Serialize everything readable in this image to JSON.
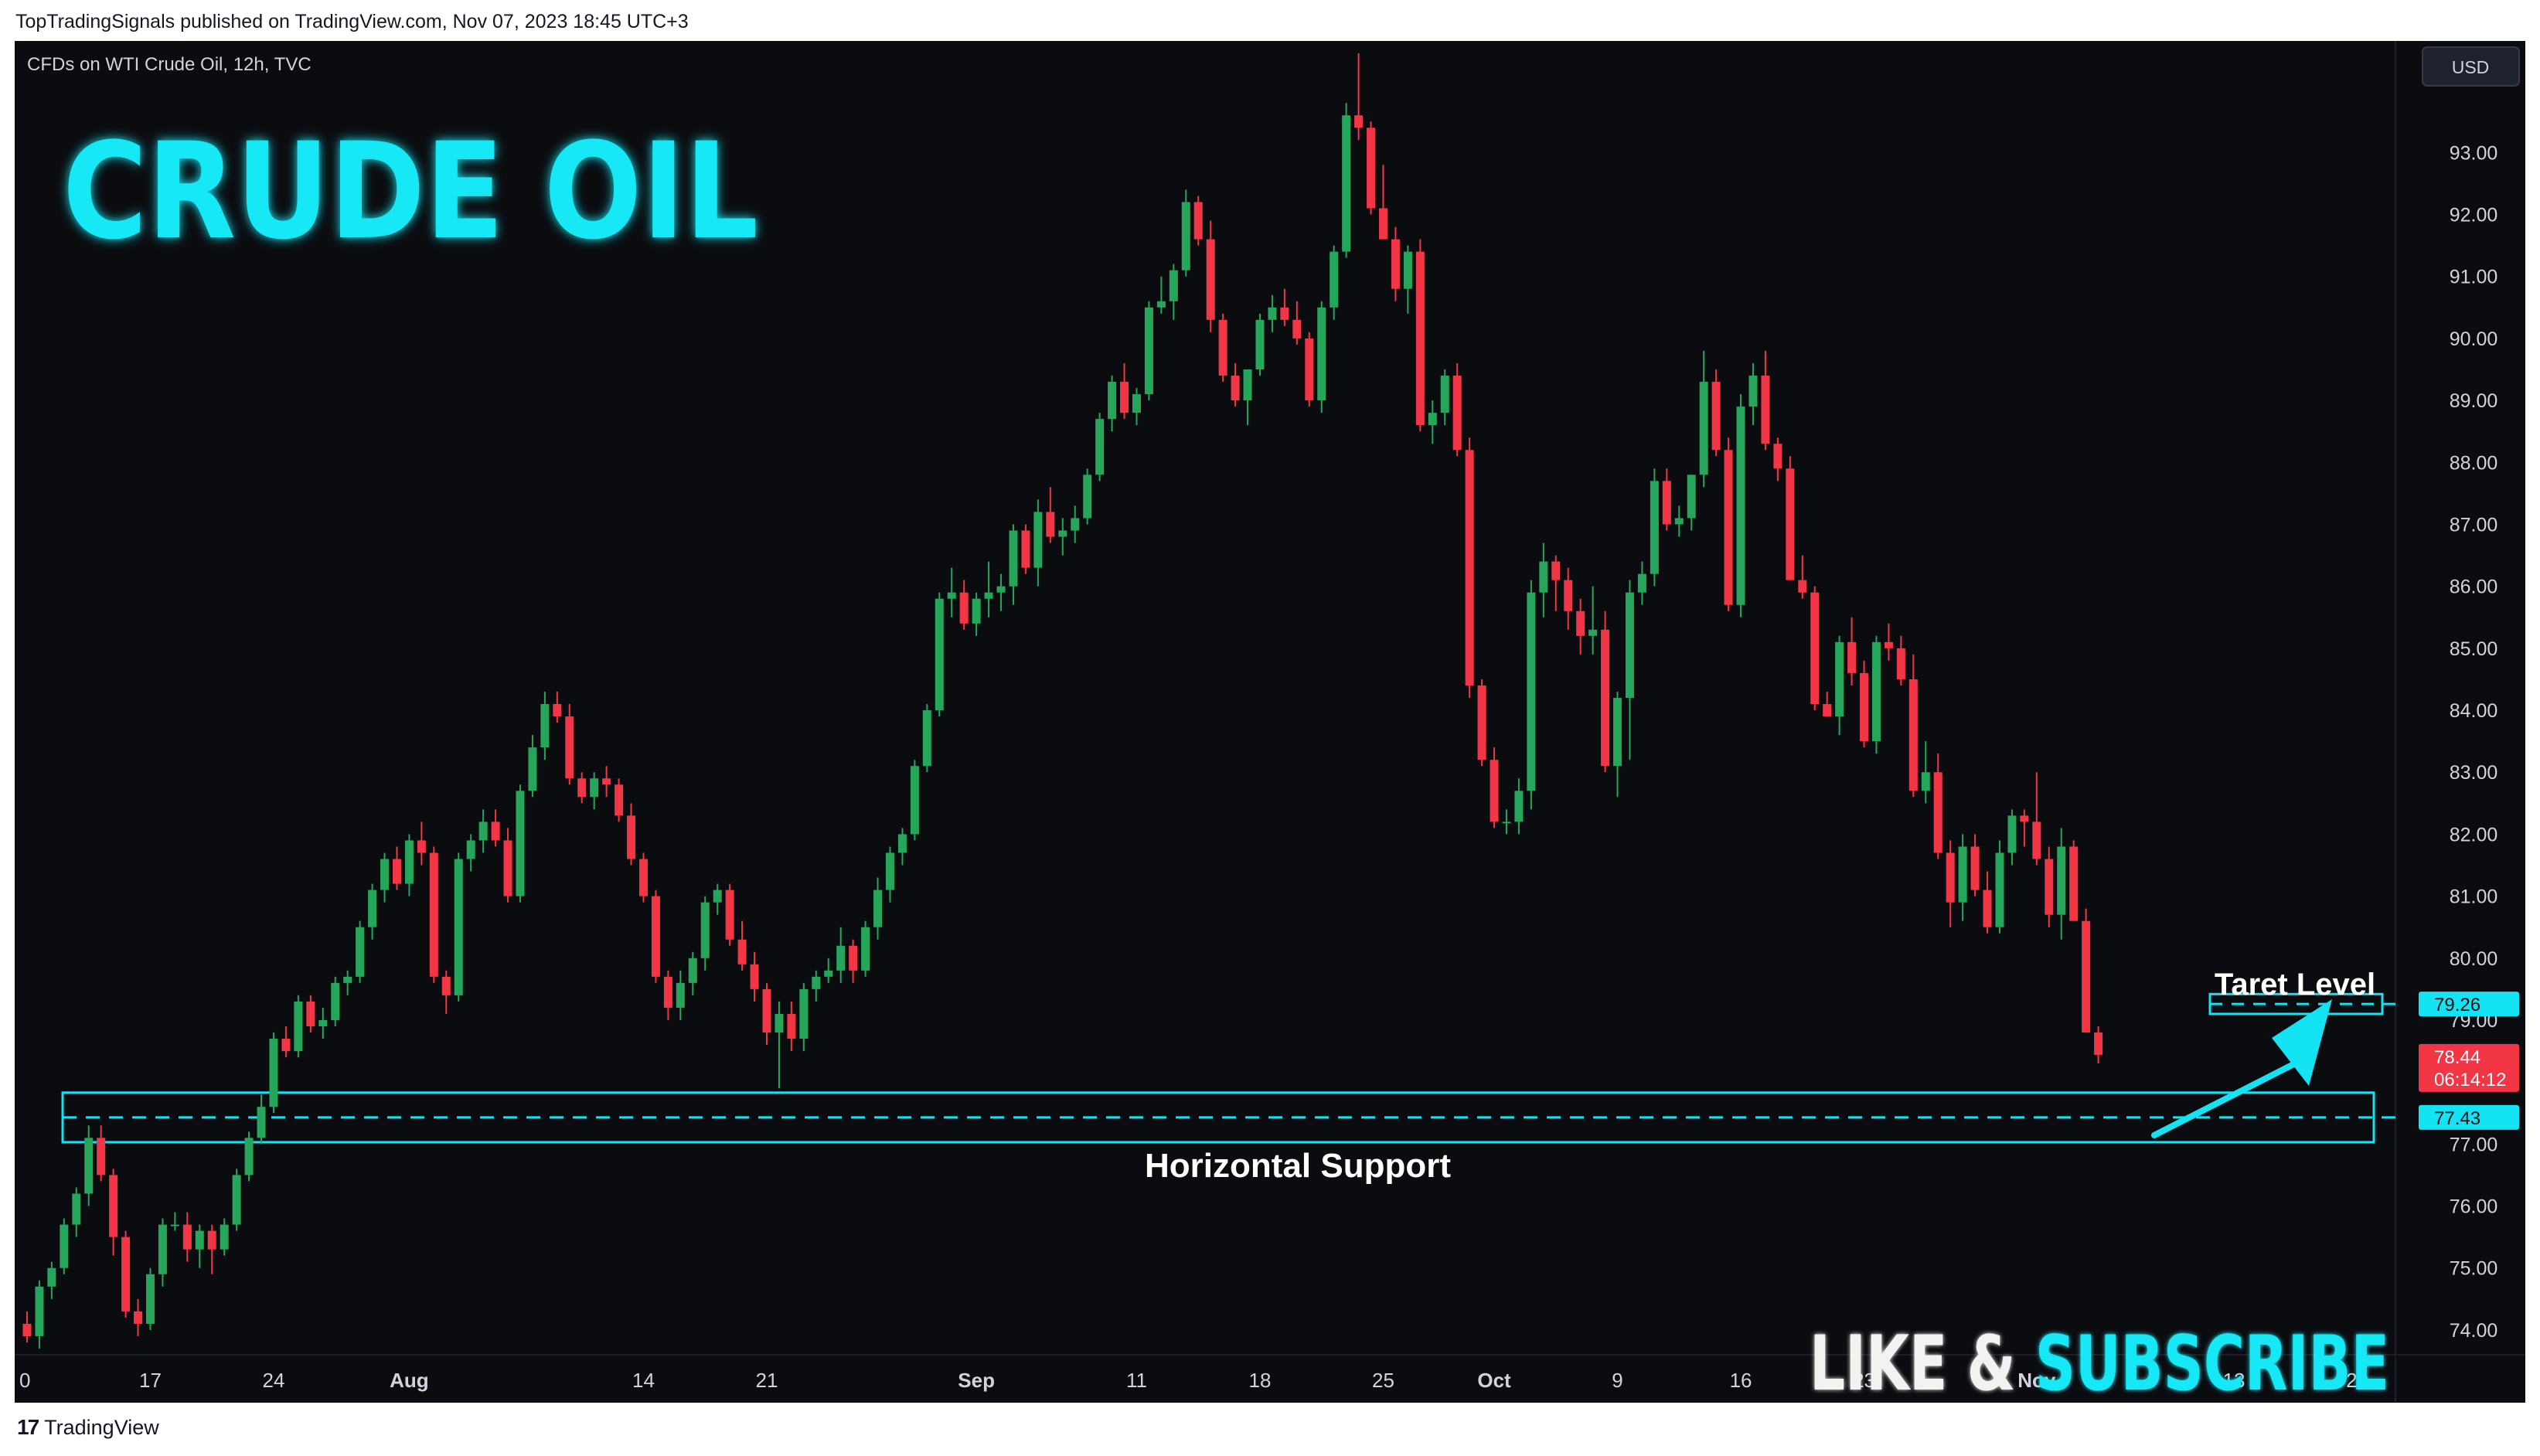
{
  "header": {
    "published_text": "TopTradingSignals published on TradingView.com, Nov 07, 2023 18:45 UTC+3"
  },
  "chart_header": {
    "symbol_text": "CFDs on WTI Crude Oil, 12h, TVC",
    "currency_button": "USD"
  },
  "overlay": {
    "title": "CRUDE OIL",
    "cta_like": "LIKE & ",
    "cta_subscribe": "SUBSCRIBE",
    "target_label": "Taret Level",
    "support_label": "Horizontal Support"
  },
  "footer": {
    "brand": "TradingView",
    "logo_glyph": "17"
  },
  "colors": {
    "background": "#0b0c10",
    "bull": "#26a65b",
    "bear": "#f23645",
    "accent": "#13e3f2",
    "axis_text": "#d1d4dc"
  },
  "chart_data": {
    "type": "candlestick",
    "interval": "12h",
    "y_axis": {
      "range": [
        73.6,
        94.8
      ],
      "ticks": [
        74.0,
        75.0,
        76.0,
        77.0,
        78.0,
        79.0,
        80.0,
        81.0,
        82.0,
        83.0,
        84.0,
        85.0,
        86.0,
        87.0,
        88.0,
        89.0,
        90.0,
        91.0,
        92.0,
        93.0
      ],
      "tick_labels": [
        "74.00",
        "75.00",
        "76.00",
        "77.00",
        "",
        "79.00",
        "80.00",
        "81.00",
        "82.00",
        "83.00",
        "84.00",
        "85.00",
        "86.00",
        "87.00",
        "88.00",
        "89.00",
        "90.00",
        "91.00",
        "92.00",
        "93.00"
      ]
    },
    "x_axis": {
      "labels": [
        "0",
        "17",
        "24",
        "Aug",
        "14",
        "21",
        "Sep",
        "11",
        "18",
        "25",
        "Oct",
        "9",
        "16",
        "23",
        "Nov",
        "13",
        "20"
      ],
      "label_candle_index": [
        0,
        10,
        20,
        31,
        50,
        60,
        77,
        90,
        100,
        110,
        119,
        129,
        139,
        149,
        163,
        179,
        189
      ],
      "bold_labels": [
        "Aug",
        "Sep",
        "Oct",
        "Nov"
      ]
    },
    "price_labels": [
      {
        "value": 79.26,
        "text": "79.26",
        "kind": "target"
      },
      {
        "value": 77.43,
        "text": "77.43",
        "kind": "support"
      },
      {
        "value": 78.44,
        "text": "78.44",
        "countdown": "06:14:12",
        "kind": "last"
      }
    ],
    "levels": {
      "support": {
        "value": 77.43,
        "zone": [
          77.03,
          77.83
        ]
      },
      "target": {
        "value": 79.26,
        "zone": [
          79.1,
          79.42
        ]
      }
    },
    "candles": [
      [
        74.1,
        74.3,
        73.8,
        73.9
      ],
      [
        73.9,
        74.8,
        73.7,
        74.7
      ],
      [
        74.7,
        75.1,
        74.5,
        75.0
      ],
      [
        75.0,
        75.8,
        74.9,
        75.7
      ],
      [
        75.7,
        76.3,
        75.5,
        76.2
      ],
      [
        76.2,
        77.3,
        76.0,
        77.1
      ],
      [
        77.1,
        77.3,
        76.4,
        76.5
      ],
      [
        76.5,
        76.6,
        75.2,
        75.5
      ],
      [
        75.5,
        75.6,
        74.2,
        74.3
      ],
      [
        74.3,
        74.5,
        73.9,
        74.1
      ],
      [
        74.1,
        75.0,
        74.0,
        74.9
      ],
      [
        74.9,
        75.8,
        74.7,
        75.7
      ],
      [
        75.7,
        75.9,
        75.6,
        75.7
      ],
      [
        75.7,
        75.9,
        75.1,
        75.3
      ],
      [
        75.3,
        75.7,
        75.0,
        75.6
      ],
      [
        75.6,
        75.7,
        74.9,
        75.3
      ],
      [
        75.3,
        75.8,
        75.2,
        75.7
      ],
      [
        75.7,
        76.6,
        75.6,
        76.5
      ],
      [
        76.5,
        77.2,
        76.4,
        77.1
      ],
      [
        77.1,
        77.8,
        77.0,
        77.6
      ],
      [
        77.6,
        78.8,
        77.5,
        78.7
      ],
      [
        78.7,
        78.9,
        78.4,
        78.5
      ],
      [
        78.5,
        79.4,
        78.4,
        79.3
      ],
      [
        79.3,
        79.4,
        78.8,
        78.9
      ],
      [
        78.9,
        79.2,
        78.7,
        79.0
      ],
      [
        79.0,
        79.7,
        78.9,
        79.6
      ],
      [
        79.6,
        79.8,
        79.4,
        79.7
      ],
      [
        79.7,
        80.6,
        79.6,
        80.5
      ],
      [
        80.5,
        81.2,
        80.3,
        81.1
      ],
      [
        81.1,
        81.7,
        80.9,
        81.6
      ],
      [
        81.6,
        81.8,
        81.1,
        81.2
      ],
      [
        81.2,
        82.0,
        81.0,
        81.9
      ],
      [
        81.9,
        82.2,
        81.5,
        81.7
      ],
      [
        81.7,
        81.8,
        79.6,
        79.7
      ],
      [
        79.7,
        79.8,
        79.1,
        79.4
      ],
      [
        79.4,
        81.7,
        79.3,
        81.6
      ],
      [
        81.6,
        82.0,
        81.4,
        81.9
      ],
      [
        81.9,
        82.4,
        81.7,
        82.2
      ],
      [
        82.2,
        82.4,
        81.8,
        81.9
      ],
      [
        81.9,
        82.1,
        80.9,
        81.0
      ],
      [
        81.0,
        82.8,
        80.9,
        82.7
      ],
      [
        82.7,
        83.6,
        82.6,
        83.4
      ],
      [
        83.4,
        84.3,
        83.2,
        84.1
      ],
      [
        84.1,
        84.3,
        83.8,
        83.9
      ],
      [
        83.9,
        84.1,
        82.8,
        82.9
      ],
      [
        82.9,
        83.0,
        82.5,
        82.6
      ],
      [
        82.6,
        83.0,
        82.4,
        82.9
      ],
      [
        82.9,
        83.1,
        82.6,
        82.8
      ],
      [
        82.8,
        82.9,
        82.2,
        82.3
      ],
      [
        82.3,
        82.5,
        81.5,
        81.6
      ],
      [
        81.6,
        81.7,
        80.9,
        81.0
      ],
      [
        81.0,
        81.1,
        79.6,
        79.7
      ],
      [
        79.7,
        79.8,
        79.0,
        79.2
      ],
      [
        79.2,
        79.8,
        79.0,
        79.6
      ],
      [
        79.6,
        80.1,
        79.4,
        80.0
      ],
      [
        80.0,
        81.0,
        79.8,
        80.9
      ],
      [
        80.9,
        81.2,
        80.7,
        81.1
      ],
      [
        81.1,
        81.2,
        80.2,
        80.3
      ],
      [
        80.3,
        80.6,
        79.8,
        79.9
      ],
      [
        79.9,
        80.1,
        79.3,
        79.5
      ],
      [
        79.5,
        79.6,
        78.6,
        78.8
      ],
      [
        78.8,
        79.3,
        77.9,
        79.1
      ],
      [
        79.1,
        79.3,
        78.5,
        78.7
      ],
      [
        78.7,
        79.6,
        78.5,
        79.5
      ],
      [
        79.5,
        79.8,
        79.3,
        79.7
      ],
      [
        79.7,
        80.0,
        79.6,
        79.8
      ],
      [
        79.8,
        80.5,
        79.6,
        80.2
      ],
      [
        80.2,
        80.3,
        79.6,
        79.8
      ],
      [
        79.8,
        80.6,
        79.7,
        80.5
      ],
      [
        80.5,
        81.3,
        80.3,
        81.1
      ],
      [
        81.1,
        81.8,
        80.9,
        81.7
      ],
      [
        81.7,
        82.1,
        81.5,
        82.0
      ],
      [
        82.0,
        83.2,
        81.9,
        83.1
      ],
      [
        83.1,
        84.1,
        83.0,
        84.0
      ],
      [
        84.0,
        85.9,
        83.9,
        85.8
      ],
      [
        85.8,
        86.3,
        85.5,
        85.9
      ],
      [
        85.9,
        86.1,
        85.3,
        85.4
      ],
      [
        85.4,
        85.9,
        85.2,
        85.8
      ],
      [
        85.8,
        86.4,
        85.5,
        85.9
      ],
      [
        85.9,
        86.2,
        85.6,
        86.0
      ],
      [
        86.0,
        87.0,
        85.7,
        86.9
      ],
      [
        86.9,
        87.0,
        86.2,
        86.3
      ],
      [
        86.3,
        87.4,
        86.0,
        87.2
      ],
      [
        87.2,
        87.6,
        86.7,
        86.8
      ],
      [
        86.8,
        87.1,
        86.5,
        86.9
      ],
      [
        86.9,
        87.3,
        86.7,
        87.1
      ],
      [
        87.1,
        87.9,
        87.0,
        87.8
      ],
      [
        87.8,
        88.8,
        87.7,
        88.7
      ],
      [
        88.7,
        89.4,
        88.5,
        89.3
      ],
      [
        89.3,
        89.6,
        88.7,
        88.8
      ],
      [
        88.8,
        89.2,
        88.6,
        89.1
      ],
      [
        89.1,
        90.6,
        89.0,
        90.5
      ],
      [
        90.5,
        91.0,
        90.4,
        90.6
      ],
      [
        90.6,
        91.2,
        90.3,
        91.1
      ],
      [
        91.1,
        92.4,
        91.0,
        92.2
      ],
      [
        92.2,
        92.3,
        91.5,
        91.6
      ],
      [
        91.6,
        91.9,
        90.1,
        90.3
      ],
      [
        90.3,
        90.4,
        89.3,
        89.4
      ],
      [
        89.4,
        89.6,
        88.9,
        89.0
      ],
      [
        89.0,
        89.5,
        88.6,
        89.5
      ],
      [
        89.5,
        90.4,
        89.4,
        90.3
      ],
      [
        90.3,
        90.7,
        90.1,
        90.5
      ],
      [
        90.5,
        90.8,
        90.2,
        90.3
      ],
      [
        90.3,
        90.6,
        89.9,
        90.0
      ],
      [
        90.0,
        90.1,
        88.9,
        89.0
      ],
      [
        89.0,
        90.6,
        88.8,
        90.5
      ],
      [
        90.5,
        91.5,
        90.3,
        91.4
      ],
      [
        91.4,
        93.8,
        91.3,
        93.6
      ],
      [
        93.6,
        94.6,
        93.2,
        93.4
      ],
      [
        93.4,
        93.5,
        92.0,
        92.1
      ],
      [
        92.1,
        92.8,
        91.8,
        91.6
      ],
      [
        91.6,
        91.8,
        90.6,
        90.8
      ],
      [
        90.8,
        91.5,
        90.4,
        91.4
      ],
      [
        91.4,
        91.6,
        88.5,
        88.6
      ],
      [
        88.6,
        89.0,
        88.3,
        88.8
      ],
      [
        88.8,
        89.5,
        88.6,
        89.4
      ],
      [
        89.4,
        89.6,
        88.1,
        88.2
      ],
      [
        88.2,
        88.4,
        84.2,
        84.4
      ],
      [
        84.4,
        84.5,
        83.1,
        83.2
      ],
      [
        83.2,
        83.4,
        82.1,
        82.2
      ],
      [
        82.2,
        82.4,
        82.0,
        82.2
      ],
      [
        82.2,
        82.9,
        82.0,
        82.7
      ],
      [
        82.7,
        86.1,
        82.4,
        85.9
      ],
      [
        85.9,
        86.7,
        85.5,
        86.4
      ],
      [
        86.4,
        86.5,
        85.6,
        86.1
      ],
      [
        86.1,
        86.3,
        85.3,
        85.6
      ],
      [
        85.6,
        85.8,
        84.9,
        85.2
      ],
      [
        85.2,
        86.0,
        84.9,
        85.3
      ],
      [
        85.3,
        85.6,
        83.0,
        83.1
      ],
      [
        83.1,
        84.3,
        82.6,
        84.2
      ],
      [
        84.2,
        86.1,
        83.2,
        85.9
      ],
      [
        85.9,
        86.4,
        85.7,
        86.2
      ],
      [
        86.2,
        87.9,
        86.0,
        87.7
      ],
      [
        87.7,
        87.9,
        86.9,
        87.0
      ],
      [
        87.0,
        87.3,
        86.8,
        87.1
      ],
      [
        87.1,
        87.8,
        86.9,
        87.8
      ],
      [
        87.8,
        89.8,
        87.6,
        89.3
      ],
      [
        89.3,
        89.5,
        88.1,
        88.2
      ],
      [
        88.2,
        88.4,
        85.6,
        85.7
      ],
      [
        85.7,
        89.1,
        85.5,
        88.9
      ],
      [
        88.9,
        89.6,
        88.6,
        89.4
      ],
      [
        89.4,
        89.8,
        88.2,
        88.3
      ],
      [
        88.3,
        88.4,
        87.7,
        87.9
      ],
      [
        87.9,
        88.1,
        86.1,
        86.1
      ],
      [
        86.1,
        86.5,
        85.8,
        85.9
      ],
      [
        85.9,
        86.0,
        84.0,
        84.1
      ],
      [
        84.1,
        84.3,
        83.9,
        83.9
      ],
      [
        83.9,
        85.2,
        83.6,
        85.1
      ],
      [
        85.1,
        85.5,
        84.4,
        84.6
      ],
      [
        84.6,
        84.8,
        83.4,
        83.5
      ],
      [
        83.5,
        85.2,
        83.3,
        85.1
      ],
      [
        85.1,
        85.4,
        84.8,
        85.0
      ],
      [
        85.0,
        85.2,
        84.4,
        84.5
      ],
      [
        84.5,
        84.9,
        82.6,
        82.7
      ],
      [
        82.7,
        83.5,
        82.5,
        83.0
      ],
      [
        83.0,
        83.3,
        81.6,
        81.7
      ],
      [
        81.7,
        81.9,
        80.5,
        80.9
      ],
      [
        80.9,
        82.0,
        80.6,
        81.8
      ],
      [
        81.8,
        82.0,
        81.0,
        81.1
      ],
      [
        81.1,
        81.4,
        80.4,
        80.5
      ],
      [
        80.5,
        81.9,
        80.4,
        81.7
      ],
      [
        81.7,
        82.4,
        81.5,
        82.3
      ],
      [
        82.3,
        82.4,
        81.8,
        82.2
      ],
      [
        82.2,
        83.0,
        81.5,
        81.6
      ],
      [
        81.6,
        81.8,
        80.5,
        80.7
      ],
      [
        80.7,
        82.1,
        80.3,
        81.8
      ],
      [
        81.8,
        81.9,
        80.6,
        80.6
      ],
      [
        80.6,
        80.8,
        78.8,
        78.8
      ],
      [
        78.8,
        78.9,
        78.3,
        78.44
      ]
    ]
  }
}
